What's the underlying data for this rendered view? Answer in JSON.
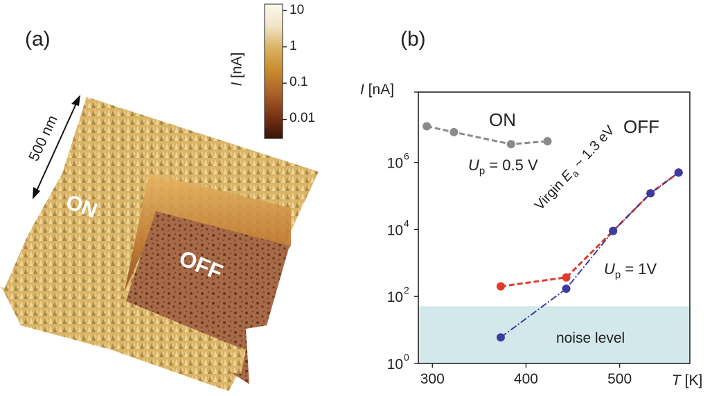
{
  "panel_a": {
    "label": "(a)",
    "scale_bar_label": "500 nm",
    "region_labels": {
      "on": "ON",
      "off": "OFF"
    },
    "colorbar": {
      "label_italic": "I",
      "label_unit": " [nA]",
      "ticks": [
        "10",
        "1",
        "0.1",
        "0.01"
      ],
      "scale": "log",
      "range": [
        0.003,
        15
      ],
      "colors": [
        "#3a1208",
        "#7a3414",
        "#a8602a",
        "#c88a2c",
        "#d9b060",
        "#f0e4c4",
        "#fbf8f0"
      ]
    }
  },
  "chart_data": {
    "type": "line",
    "panel_label": "(b)",
    "title": "",
    "xlabel": "T [K]",
    "ylabel": "I [nA]",
    "x_scale": "linear",
    "y_scale": "log",
    "xlim": [
      285,
      575
    ],
    "ylim_log10": [
      0,
      8.1
    ],
    "x_ticks": [
      300,
      400,
      500
    ],
    "y_ticks": [
      {
        "value": 1,
        "label_base": "10",
        "label_exp": "0"
      },
      {
        "value": 100,
        "label_base": "10",
        "label_exp": "2"
      },
      {
        "value": 10000,
        "label_base": "10",
        "label_exp": "4"
      },
      {
        "value": 1000000,
        "label_base": "10",
        "label_exp": "6"
      }
    ],
    "grid": false,
    "series": [
      {
        "name": "ON, Up = 0.5 V",
        "color": "#8a8a8a",
        "style": "dashed",
        "x": [
          294,
          323,
          384,
          423
        ],
        "y": [
          12000000,
          8000000,
          3500000,
          4300000
        ]
      },
      {
        "name": "Virgin",
        "color": "#e03a2e",
        "style": "dashed",
        "x": [
          373,
          443,
          493,
          533,
          563
        ],
        "y": [
          200,
          370,
          9000,
          120000,
          500000
        ]
      },
      {
        "name": "OFF, Up = 1V",
        "color": "#3c3ca0",
        "style": "dash-dot",
        "x": [
          373,
          443,
          493,
          533,
          563
        ],
        "y": [
          6,
          170,
          9000,
          120000,
          500000
        ]
      }
    ],
    "noise_band": {
      "label": "noise level",
      "y_max": 51,
      "color": "#d3e8ea"
    },
    "annotations": {
      "on": "ON",
      "off": "OFF",
      "up_on": {
        "sym": "U",
        "sub": "p",
        "rest": " = 0.5 V"
      },
      "up_off": {
        "sym": "U",
        "sub": "p",
        "rest": " = 1V"
      },
      "virgin": {
        "pre": "Virgin ",
        "sym": "E",
        "sub": "a",
        "rest": " ~ 1.3 eV"
      }
    }
  }
}
